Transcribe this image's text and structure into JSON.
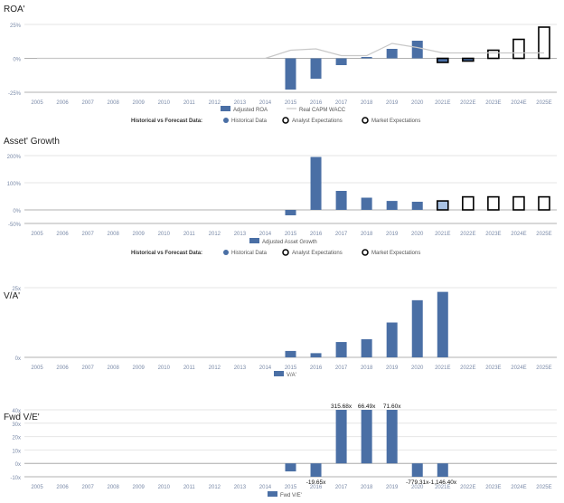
{
  "colors": {
    "bar": "#4a6fa5",
    "bar_light": "#a9c2e3",
    "forecast_stroke": "#000000",
    "wacc_line": "#c8c8c8",
    "grid": "#e6e6e6",
    "axis_text": "#7a8aa8",
    "title": "#222222"
  },
  "legend_common": {
    "label": "Historical vs Forecast Data:",
    "historical": "Historical Data",
    "analyst": "Analyst Expectations",
    "market": "Market Expectations"
  },
  "chart_data": [
    {
      "type": "bar",
      "title": "ROA'",
      "categories": [
        "2005",
        "2006",
        "2007",
        "2008",
        "2009",
        "2010",
        "2011",
        "2012",
        "2013",
        "2014",
        "2015",
        "2016",
        "2017",
        "2018",
        "2019",
        "2020",
        "2021E",
        "2022E",
        "2023E",
        "2024E",
        "2025E"
      ],
      "series": [
        {
          "name": "Adjusted ROA",
          "values": [
            0,
            0,
            0,
            0,
            0,
            0,
            0,
            0,
            0,
            0,
            -23,
            -15,
            -5,
            1,
            7,
            13,
            -3,
            -2,
            6,
            14,
            23
          ],
          "kinds": [
            "h",
            "h",
            "h",
            "h",
            "h",
            "h",
            "h",
            "h",
            "h",
            "h",
            "h",
            "h",
            "h",
            "h",
            "h",
            "h",
            "analyst",
            "analyst",
            "market",
            "market",
            "market"
          ]
        },
        {
          "name": "Real CAPM WACC",
          "type": "line",
          "values": [
            0,
            0,
            0,
            0,
            0,
            0,
            0,
            0,
            0,
            0,
            6,
            7,
            2,
            2,
            11,
            8,
            4,
            4,
            4,
            4,
            4
          ]
        }
      ],
      "ylim": [
        -25,
        25
      ],
      "yticks": [
        -25,
        0,
        25
      ],
      "ytick_labels": [
        "-25%",
        "0%",
        "25%"
      ],
      "legend": [
        "Adjusted ROA",
        "Real CAPM WACC"
      ]
    },
    {
      "type": "bar",
      "title": "Asset' Growth",
      "categories": [
        "2005",
        "2006",
        "2007",
        "2008",
        "2009",
        "2010",
        "2011",
        "2012",
        "2013",
        "2014",
        "2015",
        "2016",
        "2017",
        "2018",
        "2019",
        "2020",
        "2021E",
        "2022E",
        "2023E",
        "2024E",
        "2025E"
      ],
      "series": [
        {
          "name": "Adjusted Asset Growth",
          "values": [
            0,
            0,
            0,
            0,
            0,
            0,
            0,
            0,
            0,
            0,
            -20,
            195,
            70,
            45,
            33,
            30,
            33,
            48,
            48,
            48,
            48
          ],
          "kinds": [
            "h",
            "h",
            "h",
            "h",
            "h",
            "h",
            "h",
            "h",
            "h",
            "h",
            "h",
            "h",
            "h",
            "h",
            "h",
            "h",
            "analyst_fill",
            "market",
            "market",
            "market",
            "market"
          ]
        }
      ],
      "ylim": [
        -50,
        200
      ],
      "yticks": [
        -50,
        0,
        100,
        200
      ],
      "ytick_labels": [
        "-50%",
        "0%",
        "100%",
        "200%"
      ],
      "legend": [
        "Adjusted Asset Growth"
      ]
    },
    {
      "type": "bar",
      "title": "V/A'",
      "categories": [
        "2005",
        "2006",
        "2007",
        "2008",
        "2009",
        "2010",
        "2011",
        "2012",
        "2013",
        "2014",
        "2015",
        "2016",
        "2017",
        "2018",
        "2019",
        "2020",
        "2021E"
      ],
      "series": [
        {
          "name": "V/A'",
          "values": [
            0,
            0,
            0,
            0,
            0,
            0,
            0,
            0,
            0,
            0,
            2.3,
            1.5,
            5.5,
            6.5,
            12.5,
            20.5,
            23.5
          ]
        }
      ],
      "ylim": [
        0,
        25
      ],
      "yticks": [
        0,
        25
      ],
      "ytick_labels": [
        "0x",
        "25x"
      ],
      "legend": [
        "V/A'"
      ]
    },
    {
      "type": "bar",
      "title": "Fwd V/E'",
      "categories": [
        "2005",
        "2006",
        "2007",
        "2008",
        "2009",
        "2010",
        "2011",
        "2012",
        "2013",
        "2014",
        "2015",
        "2016",
        "2017",
        "2018",
        "2019",
        "2020",
        "2021E"
      ],
      "series": [
        {
          "name": "Fwd V/E'",
          "values": [
            0,
            0,
            0,
            0,
            0,
            0,
            0,
            0,
            0,
            0,
            -6,
            -19.65,
            315.68,
            66.49,
            71.6,
            -779.31,
            -1146.4
          ],
          "data_labels": [
            "",
            "",
            "",
            "",
            "",
            "",
            "",
            "",
            "",
            "",
            "",
            "-19.65x",
            "315.68x",
            "66.49x",
            "71.60x",
            "-779.31x",
            "-1,146.40x"
          ]
        }
      ],
      "ylim": [
        -10,
        40
      ],
      "yticks": [
        -10,
        0,
        10,
        20,
        30,
        40
      ],
      "ytick_labels": [
        "-10x",
        "0x",
        "10x",
        "20x",
        "30x",
        "40x"
      ],
      "legend": [
        "Fwd V/E'"
      ]
    }
  ]
}
